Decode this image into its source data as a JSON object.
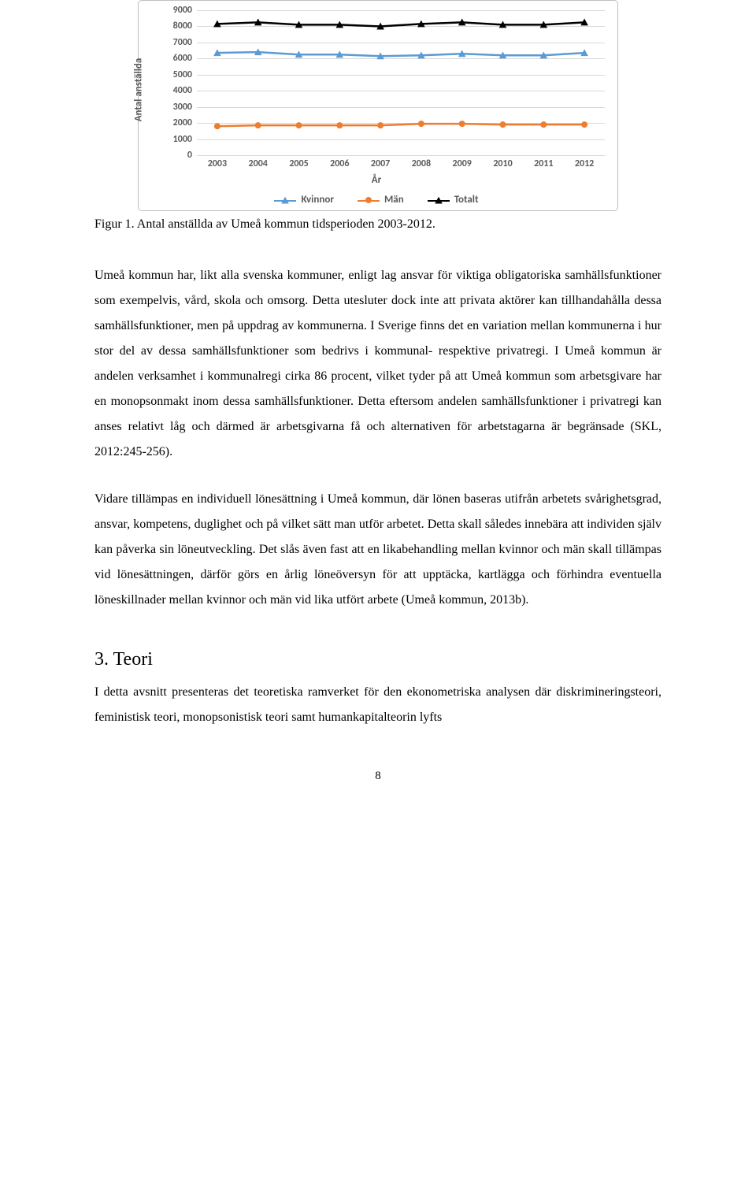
{
  "chart": {
    "type": "line",
    "y_axis_title": "Antal anställda",
    "x_axis_title": "År",
    "categories": [
      "2003",
      "2004",
      "2005",
      "2006",
      "2007",
      "2008",
      "2009",
      "2010",
      "2011",
      "2012"
    ],
    "y_min": 0,
    "y_max": 9000,
    "y_tick_step": 1000,
    "y_ticks": [
      "0",
      "1000",
      "2000",
      "3000",
      "4000",
      "5000",
      "6000",
      "7000",
      "8000",
      "9000"
    ],
    "grid_color": "#d9d9d9",
    "background_color": "#ffffff",
    "border_color": "#bfbfbf",
    "tick_font_color": "#595959",
    "tick_font_size": 12,
    "axis_title_font_size": 13,
    "line_width": 2.5,
    "series": [
      {
        "name": "Kvinnor",
        "color": "#5b9bd5",
        "marker": "triangle",
        "values": [
          6350,
          6400,
          6250,
          6250,
          6150,
          6200,
          6300,
          6200,
          6200,
          6350
        ]
      },
      {
        "name": "Män",
        "color": "#ed7d31",
        "marker": "circle",
        "values": [
          1800,
          1850,
          1850,
          1850,
          1850,
          1950,
          1950,
          1900,
          1900,
          1900
        ]
      },
      {
        "name": "Totalt",
        "color": "#000000",
        "marker": "triangle",
        "values": [
          8150,
          8250,
          8100,
          8100,
          8000,
          8150,
          8250,
          8100,
          8100,
          8250
        ]
      }
    ],
    "legend_layout": "horizontal",
    "marker_size": 8
  },
  "figure_caption": "Figur 1. Antal anställda av Umeå kommun tidsperioden 2003-2012.",
  "paragraphs": {
    "p1": "Umeå kommun har, likt alla svenska kommuner, enligt lag ansvar för viktiga obligatoriska samhällsfunktioner som exempelvis, vård, skola och omsorg. Detta utesluter dock inte att privata aktörer kan tillhandahålla dessa samhällsfunktioner, men på uppdrag av kommunerna. I Sverige finns det en variation mellan kommunerna i hur stor del av dessa samhällsfunktioner som bedrivs i kommunal- respektive privatregi. I Umeå kommun är andelen verksamhet i kommunalregi cirka 86 procent, vilket tyder på att Umeå kommun som arbetsgivare har en monopsonmakt inom dessa samhällsfunktioner. Detta eftersom andelen samhällsfunktioner i privatregi kan anses relativt låg och därmed är arbetsgivarna få och alternativen för arbetstagarna är begränsade (SKL, 2012:245-256).",
    "p2": "Vidare tillämpas en individuell lönesättning i Umeå kommun, där lönen baseras utifrån arbetets svårighetsgrad, ansvar, kompetens, duglighet och på vilket sätt man utför arbetet. Detta skall således innebära att individen själv kan påverka sin löneutveckling. Det slås även fast att en likabehandling mellan kvinnor och män skall tillämpas vid lönesättningen, därför görs en årlig löneöversyn för att upptäcka, kartlägga och förhindra eventuella löneskillnader mellan kvinnor och män vid lika utfört arbete (Umeå kommun, 2013b)."
  },
  "section_heading": "3. Teori",
  "section_intro": "I detta avsnitt presenteras det teoretiska ramverket för den ekonometriska analysen där diskrimineringsteori, feministisk teori, monopsonistisk teori samt humankapitalteorin lyfts",
  "page_number": "8"
}
